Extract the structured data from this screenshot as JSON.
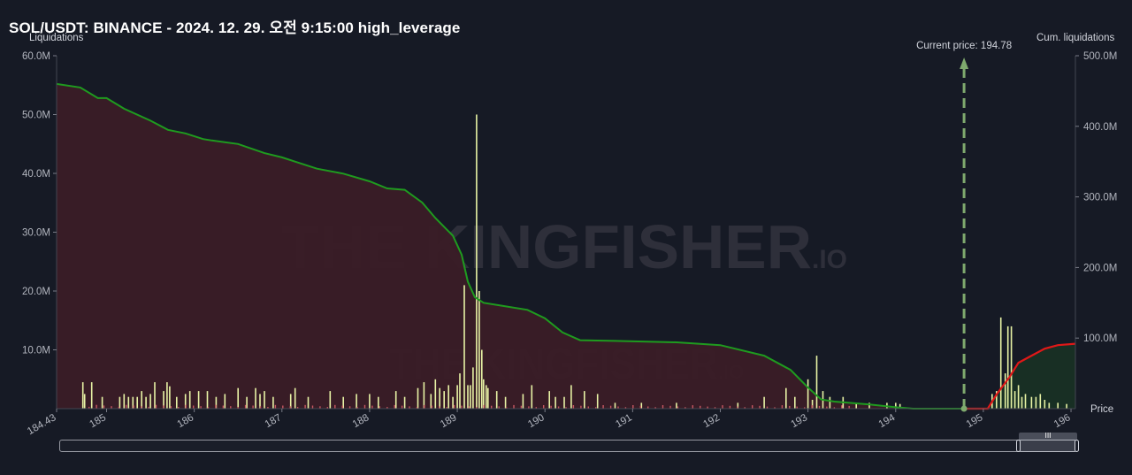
{
  "header": {
    "title": "SOL/USDT: BINANCE - 2024. 12. 29. 오전 9:15:00 high_leverage"
  },
  "watermark": {
    "brand": "THE KINGFISHER",
    "suffix": ".IO"
  },
  "scrollbar": {
    "grip_label": "III"
  },
  "chart_data": {
    "type": "bar",
    "left_axis_label": "Liquidations",
    "right_axis_label": "Cum. liquidations",
    "x_axis_label": "Price",
    "current_price_label": "Current price: 194.78",
    "current_price": 194.78,
    "xlim": [
      184.43,
      196.05
    ],
    "ylim_left": [
      0,
      60
    ],
    "ylim_right": [
      0,
      500
    ],
    "left_ticks": [
      "10.0M",
      "20.0M",
      "30.0M",
      "40.0M",
      "50.0M",
      "60.0M"
    ],
    "left_tick_values": [
      10,
      20,
      30,
      40,
      50,
      60
    ],
    "right_ticks": [
      "100.0M",
      "200.0M",
      "300.0M",
      "400.0M",
      "500.0M"
    ],
    "right_tick_values": [
      100,
      200,
      300,
      400,
      500
    ],
    "x_ticks": [
      "184.43",
      "185",
      "186",
      "187",
      "188",
      "189",
      "190",
      "191",
      "192",
      "193",
      "194",
      "195",
      "196"
    ],
    "x_tick_values": [
      184.43,
      185,
      186,
      187,
      188,
      189,
      190,
      191,
      192,
      193,
      194,
      195,
      196
    ],
    "colors": {
      "background": "#161a25",
      "bar_long": "#e8f3a5",
      "bar_short": "#c85862",
      "long_cum_line": "#1f9b1f",
      "short_cum_line": "#e01818",
      "long_fill": "#3a1c26",
      "short_fill": "#183024",
      "current_price_line": "#7faa6e"
    },
    "cum_long": {
      "unit": "M",
      "price": [
        184.43,
        184.7,
        184.9,
        185.0,
        185.2,
        185.5,
        185.7,
        185.9,
        186.1,
        186.2,
        186.5,
        186.8,
        187.0,
        187.2,
        187.4,
        187.7,
        188.0,
        188.2,
        188.4,
        188.6,
        188.75,
        188.95,
        189.05,
        189.12,
        189.2,
        189.3,
        189.5,
        189.8,
        190.0,
        190.2,
        190.4,
        190.8,
        191.5,
        192.0,
        192.5,
        192.8,
        193.0,
        193.15,
        193.3,
        193.7,
        194.0,
        194.2,
        194.78
      ],
      "value": [
        460,
        455,
        440,
        440,
        425,
        408,
        395,
        390,
        382,
        380,
        375,
        362,
        356,
        348,
        340,
        333,
        322,
        312,
        310,
        292,
        270,
        245,
        218,
        180,
        158,
        150,
        146,
        140,
        128,
        108,
        97,
        96,
        94,
        90,
        75,
        55,
        30,
        13,
        10,
        6,
        2,
        0,
        0
      ]
    },
    "cum_short": {
      "unit": "M",
      "price": [
        194.78,
        195.05,
        195.15,
        195.3,
        195.4,
        195.55,
        195.7,
        195.85,
        196.05
      ],
      "value": [
        0,
        0,
        20,
        45,
        65,
        75,
        85,
        90,
        92
      ]
    },
    "long_bars": {
      "unit": "M",
      "price": [
        184.73,
        184.75,
        184.83,
        184.95,
        185.15,
        185.2,
        185.25,
        185.3,
        185.35,
        185.4,
        185.45,
        185.5,
        185.55,
        185.65,
        185.69,
        185.72,
        185.8,
        185.9,
        185.95,
        186.05,
        186.15,
        186.25,
        186.35,
        186.5,
        186.6,
        186.7,
        186.75,
        186.8,
        186.9,
        187.1,
        187.15,
        187.3,
        187.55,
        187.7,
        187.85,
        188.0,
        188.1,
        188.3,
        188.4,
        188.55,
        188.62,
        188.7,
        188.75,
        188.8,
        188.85,
        188.9,
        188.95,
        189.0,
        189.03,
        189.08,
        189.12,
        189.15,
        189.18,
        189.22,
        189.25,
        189.28,
        189.3,
        189.33,
        189.35,
        189.45,
        189.55,
        189.75,
        189.85,
        190.05,
        190.12,
        190.22,
        190.3,
        190.45,
        190.6,
        190.8,
        191.1,
        191.5,
        192.2,
        192.5,
        192.75,
        192.85,
        193.0,
        193.05,
        193.1,
        193.17,
        193.25,
        193.4,
        193.55,
        193.7,
        193.9,
        194.0,
        194.05
      ],
      "value": [
        4.5,
        2.5,
        4.5,
        2,
        2,
        2.5,
        2,
        2,
        2,
        3,
        2,
        2.5,
        4.5,
        3,
        4.5,
        3.8,
        2,
        2.5,
        3,
        3,
        3,
        2,
        2.5,
        3.5,
        2,
        3.5,
        2.5,
        3,
        2,
        2.5,
        3.5,
        2,
        3,
        2,
        2.5,
        2.5,
        2,
        3,
        2,
        3.5,
        4.5,
        2.5,
        5,
        3.5,
        3,
        4,
        2,
        4,
        6,
        21,
        4,
        4,
        7,
        50,
        20,
        10,
        5,
        4,
        3.5,
        3,
        2,
        2.5,
        4,
        3,
        2,
        2,
        4,
        3,
        2.5,
        1,
        1,
        1,
        1,
        2,
        3.5,
        2,
        5,
        1.5,
        9,
        3,
        2,
        2,
        1,
        1,
        1,
        1,
        0.8
      ],
      "value_note": ""
    },
    "short_bars": {
      "unit": "M",
      "price": [
        195.1,
        195.15,
        195.2,
        195.25,
        195.28,
        195.32,
        195.36,
        195.4,
        195.44,
        195.48,
        195.55,
        195.6,
        195.65,
        195.7,
        195.75,
        195.85,
        195.95
      ],
      "value": [
        2.5,
        3,
        15.5,
        6,
        14,
        14,
        3,
        4,
        2,
        2.5,
        2,
        2,
        2.5,
        1.5,
        1,
        1,
        0.8
      ]
    }
  }
}
